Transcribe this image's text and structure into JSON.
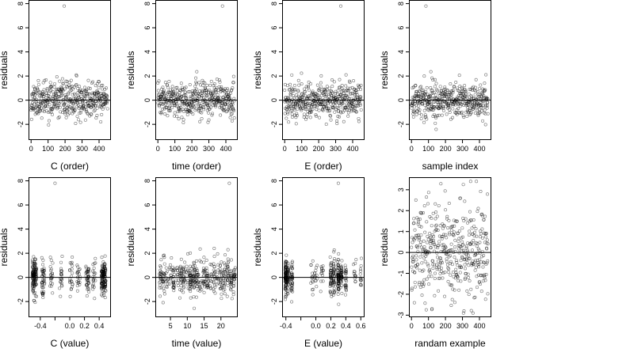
{
  "figure": {
    "background": "#ffffff",
    "point_color": "#000000",
    "point_opacity": 0.55,
    "zero_line": 0
  },
  "chart_data": [
    {
      "type": "scatter",
      "title": "",
      "xlabel": "C (order)",
      "ylabel": "residuals",
      "xlim": [
        -15,
        470
      ],
      "ylim": [
        -3.3,
        8.3
      ],
      "xticks": [
        0,
        100,
        200,
        300,
        400
      ],
      "xtick_labels": [
        "0",
        "100",
        "200",
        "300",
        "400"
      ],
      "yticks": [
        -2,
        0,
        2,
        4,
        6,
        8
      ],
      "ytick_labels": [
        "-2",
        "0",
        "2",
        "4",
        "6",
        "8"
      ],
      "hline": 0,
      "n_points": 451,
      "pattern": "index",
      "seed": 11,
      "x": [
        195
      ],
      "y": [
        7.8
      ]
    },
    {
      "type": "scatter",
      "title": "",
      "xlabel": "time (order)",
      "ylabel": "residuals",
      "xlim": [
        -15,
        470
      ],
      "ylim": [
        -3.3,
        8.3
      ],
      "xticks": [
        0,
        100,
        200,
        300,
        400
      ],
      "xtick_labels": [
        "0",
        "100",
        "200",
        "300",
        "400"
      ],
      "yticks": [
        -2,
        0,
        2,
        4,
        6,
        8
      ],
      "ytick_labels": [
        "-2",
        "0",
        "2",
        "4",
        "6",
        "8"
      ],
      "hline": 0,
      "n_points": 451,
      "pattern": "index",
      "seed": 23,
      "x": [
        380
      ],
      "y": [
        7.8
      ]
    },
    {
      "type": "scatter",
      "title": "",
      "xlabel": "E (order)",
      "ylabel": "residuals",
      "xlim": [
        -15,
        470
      ],
      "ylim": [
        -3.3,
        8.3
      ],
      "xticks": [
        0,
        100,
        200,
        300,
        400
      ],
      "xtick_labels": [
        "0",
        "100",
        "200",
        "300",
        "400"
      ],
      "yticks": [
        -2,
        0,
        2,
        4,
        6,
        8
      ],
      "ytick_labels": [
        "-2",
        "0",
        "2",
        "4",
        "6",
        "8"
      ],
      "hline": 0,
      "n_points": 451,
      "pattern": "index",
      "seed": 37,
      "x": [
        330
      ],
      "y": [
        7.8
      ]
    },
    {
      "type": "scatter",
      "title": "",
      "xlabel": "sample index",
      "ylabel": "residuals",
      "xlim": [
        -15,
        470
      ],
      "ylim": [
        -3.3,
        8.3
      ],
      "xticks": [
        0,
        100,
        200,
        300,
        400
      ],
      "xtick_labels": [
        "0",
        "100",
        "200",
        "300",
        "400"
      ],
      "yticks": [
        -2,
        0,
        2,
        4,
        6,
        8
      ],
      "ytick_labels": [
        "-2",
        "0",
        "2",
        "4",
        "6",
        "8"
      ],
      "hline": 0,
      "n_points": 451,
      "pattern": "index",
      "seed": 41,
      "x": [
        85
      ],
      "y": [
        7.8
      ]
    },
    {
      "type": "scatter",
      "title": "",
      "xlabel": "C (value)",
      "ylabel": "residuals",
      "xlim": [
        -0.56,
        0.56
      ],
      "ylim": [
        -3.3,
        8.3
      ],
      "xticks": [
        -0.4,
        -0.2,
        0.0,
        0.2,
        0.4
      ],
      "xtick_labels": [
        "-0.4",
        "",
        "0.0",
        "0.2",
        "0.4"
      ],
      "yticks": [
        -2,
        0,
        2,
        4,
        6,
        8
      ],
      "ytick_labels": [
        "-2",
        "0",
        "2",
        "4",
        "6",
        "8"
      ],
      "hline": 0,
      "n_points": 451,
      "pattern": "clusters",
      "seed": 53,
      "clusters": [
        {
          "x": -0.48,
          "spread": 0.03,
          "weight": 6
        },
        {
          "x": -0.36,
          "spread": 0.02,
          "weight": 2
        },
        {
          "x": -0.25,
          "spread": 0.02,
          "weight": 1
        },
        {
          "x": -0.12,
          "spread": 0.02,
          "weight": 1
        },
        {
          "x": 0.02,
          "spread": 0.02,
          "weight": 1
        },
        {
          "x": 0.12,
          "spread": 0.02,
          "weight": 1
        },
        {
          "x": 0.24,
          "spread": 0.02,
          "weight": 2
        },
        {
          "x": 0.33,
          "spread": 0.02,
          "weight": 1
        },
        {
          "x": 0.46,
          "spread": 0.03,
          "weight": 6
        }
      ],
      "x": [
        -0.2
      ],
      "y": [
        7.8
      ]
    },
    {
      "type": "scatter",
      "title": "",
      "xlabel": "time (value)",
      "ylabel": "residuals",
      "xlim": [
        0.5,
        25
      ],
      "ylim": [
        -3.3,
        8.3
      ],
      "xticks": [
        5,
        10,
        15,
        20
      ],
      "xtick_labels": [
        "5",
        "10",
        "15",
        "20"
      ],
      "yticks": [
        -2,
        0,
        2,
        4,
        6,
        8
      ],
      "ytick_labels": [
        "-2",
        "0",
        "2",
        "4",
        "6",
        "8"
      ],
      "hline": 0,
      "n_points": 451,
      "pattern": "clusters",
      "seed": 67,
      "clusters": [
        {
          "x": 2,
          "spread": 0.3,
          "weight": 2
        },
        {
          "x": 3,
          "spread": 0.3,
          "weight": 2
        },
        {
          "x": 4,
          "spread": 0.3,
          "weight": 1
        },
        {
          "x": 5,
          "spread": 0.3,
          "weight": 1
        },
        {
          "x": 6,
          "spread": 0.3,
          "weight": 2
        },
        {
          "x": 7,
          "spread": 0.3,
          "weight": 1
        },
        {
          "x": 8,
          "spread": 0.3,
          "weight": 2
        },
        {
          "x": 9,
          "spread": 0.3,
          "weight": 2
        },
        {
          "x": 10,
          "spread": 0.3,
          "weight": 1
        },
        {
          "x": 11,
          "spread": 0.3,
          "weight": 3
        },
        {
          "x": 12,
          "spread": 0.3,
          "weight": 3
        },
        {
          "x": 13,
          "spread": 0.3,
          "weight": 2
        },
        {
          "x": 14,
          "spread": 0.3,
          "weight": 1
        },
        {
          "x": 15,
          "spread": 0.3,
          "weight": 2
        },
        {
          "x": 16,
          "spread": 0.3,
          "weight": 2
        },
        {
          "x": 17,
          "spread": 0.3,
          "weight": 1
        },
        {
          "x": 18,
          "spread": 0.3,
          "weight": 2
        },
        {
          "x": 19,
          "spread": 0.3,
          "weight": 1
        },
        {
          "x": 20,
          "spread": 0.3,
          "weight": 2
        },
        {
          "x": 21,
          "spread": 0.3,
          "weight": 2
        },
        {
          "x": 22,
          "spread": 0.3,
          "weight": 2
        },
        {
          "x": 23,
          "spread": 0.3,
          "weight": 2
        },
        {
          "x": 24,
          "spread": 0.3,
          "weight": 2
        }
      ],
      "x": [
        22.5
      ],
      "y": [
        7.8
      ]
    },
    {
      "type": "scatter",
      "title": "",
      "xlabel": "E (value)",
      "ylabel": "residuals",
      "xlim": [
        -0.45,
        0.65
      ],
      "ylim": [
        -3.3,
        8.3
      ],
      "xticks": [
        -0.4,
        -0.2,
        0.0,
        0.2,
        0.4,
        0.6
      ],
      "xtick_labels": [
        "-0.4",
        "",
        "0.0",
        "0.2",
        "0.4",
        "0.6"
      ],
      "yticks": [
        -2,
        0,
        2,
        4,
        6,
        8
      ],
      "ytick_labels": [
        "-2",
        "0",
        "2",
        "4",
        "6",
        "8"
      ],
      "hline": 0,
      "n_points": 451,
      "pattern": "clusters",
      "seed": 79,
      "clusters": [
        {
          "x": -0.4,
          "spread": 0.01,
          "weight": 8
        },
        {
          "x": -0.37,
          "spread": 0.01,
          "weight": 3
        },
        {
          "x": -0.32,
          "spread": 0.01,
          "weight": 3
        },
        {
          "x": -0.05,
          "spread": 0.02,
          "weight": 1
        },
        {
          "x": 0.0,
          "spread": 0.02,
          "weight": 1
        },
        {
          "x": 0.08,
          "spread": 0.02,
          "weight": 1
        },
        {
          "x": 0.2,
          "spread": 0.01,
          "weight": 3
        },
        {
          "x": 0.24,
          "spread": 0.01,
          "weight": 3
        },
        {
          "x": 0.3,
          "spread": 0.01,
          "weight": 5
        },
        {
          "x": 0.34,
          "spread": 0.01,
          "weight": 3
        },
        {
          "x": 0.4,
          "spread": 0.01,
          "weight": 2
        },
        {
          "x": 0.52,
          "spread": 0.02,
          "weight": 1
        },
        {
          "x": 0.6,
          "spread": 0.01,
          "weight": 1
        }
      ],
      "x": [
        0.3
      ],
      "y": [
        7.8
      ]
    },
    {
      "type": "scatter",
      "title": "",
      "xlabel": "randam example",
      "ylabel": "residuals",
      "xlim": [
        -15,
        470
      ],
      "ylim": [
        -3.1,
        3.6
      ],
      "xticks": [
        0,
        100,
        200,
        300,
        400
      ],
      "xtick_labels": [
        "0",
        "100",
        "200",
        "300",
        "400"
      ],
      "yticks": [
        -3,
        -2,
        -1,
        0,
        1,
        2,
        3
      ],
      "ytick_labels": [
        "-3",
        "-2",
        "-1",
        "0",
        "1",
        "2",
        "3"
      ],
      "hline": 0,
      "n_points": 451,
      "pattern": "normal",
      "seed": 97,
      "x": [],
      "y": []
    }
  ]
}
